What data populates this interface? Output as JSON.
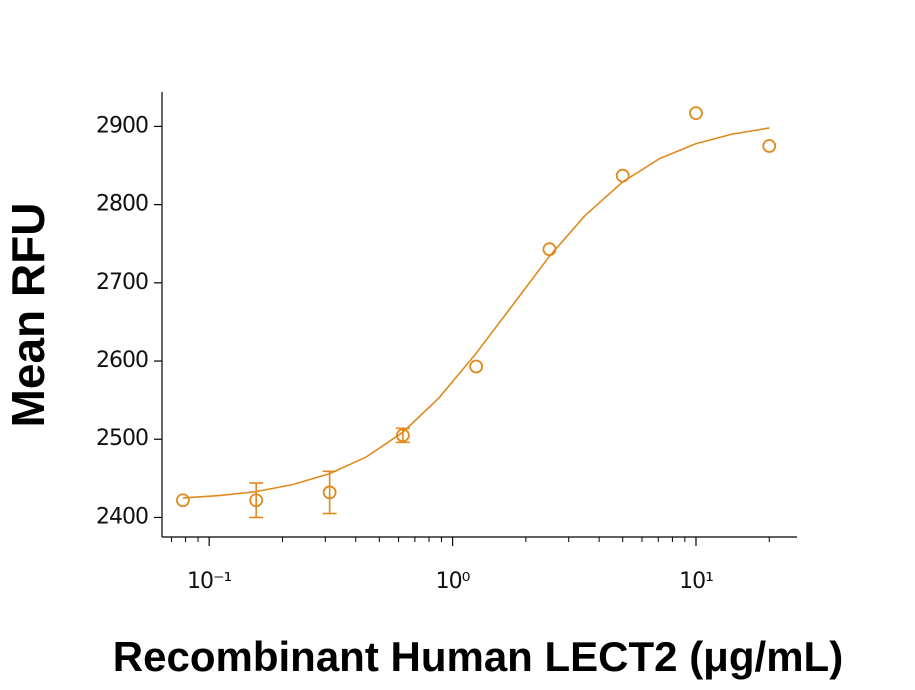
{
  "chart_data": {
    "type": "scatter",
    "xlabel": "Recombinant Human LECT2 (μg/mL)",
    "ylabel": "Mean RFU",
    "xscale": "log",
    "xlim": [
      0.064,
      26
    ],
    "ylim": [
      2375,
      2944
    ],
    "xticks": [
      {
        "value": 0.1,
        "label": "10⁻¹"
      },
      {
        "value": 1,
        "label": "10⁰"
      },
      {
        "value": 10,
        "label": "10¹"
      }
    ],
    "xminorticks": [
      0.07,
      0.08,
      0.09,
      0.2,
      0.3,
      0.4,
      0.5,
      0.6,
      0.7,
      0.8,
      0.9,
      2,
      3,
      4,
      5,
      6,
      7,
      8,
      9,
      20
    ],
    "yticks": [
      2400,
      2500,
      2600,
      2700,
      2800,
      2900
    ],
    "color": "#e08a1e",
    "series": [
      {
        "type": "scatter",
        "x": [
          0.078,
          0.156,
          0.3125,
          0.625,
          1.25,
          2.5,
          5,
          10,
          20
        ],
        "values": [
          2422,
          2422,
          2432,
          2505,
          2593,
          2743,
          2837,
          2917,
          2875
        ],
        "errors": [
          null,
          22,
          27,
          9,
          null,
          null,
          null,
          null,
          null
        ]
      },
      {
        "type": "line",
        "x": [
          0.078,
          0.11,
          0.156,
          0.22,
          0.3125,
          0.44,
          0.625,
          0.88,
          1.25,
          1.77,
          2.5,
          3.5,
          5,
          7.1,
          10,
          14,
          20
        ],
        "values": [
          2425,
          2428,
          2433,
          2442,
          2456,
          2477,
          2509,
          2553,
          2610,
          2672,
          2734,
          2786,
          2829,
          2859,
          2878,
          2890,
          2898
        ]
      }
    ]
  }
}
